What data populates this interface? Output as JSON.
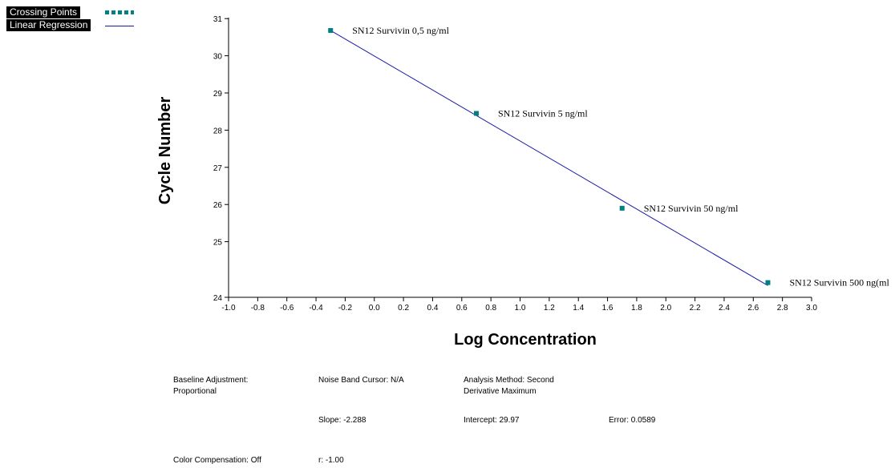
{
  "legend": {
    "items": [
      {
        "label": "Crossing Points",
        "style": "dots",
        "color": "#008080"
      },
      {
        "label": "Linear Regression",
        "style": "line",
        "color": "#1a1aa8"
      }
    ]
  },
  "chart_data": {
    "type": "scatter",
    "xlabel": "Log Concentration",
    "ylabel": "Cycle Number",
    "xlim": [
      -1.0,
      3.0
    ],
    "ylim": [
      24,
      31
    ],
    "x_ticks": [
      "-1.0",
      "-0.8",
      "-0.6",
      "-0.4",
      "-0.2",
      "0.0",
      "0.2",
      "0.4",
      "0.6",
      "0.8",
      "1.0",
      "1.2",
      "1.4",
      "1.6",
      "1.8",
      "2.0",
      "2.2",
      "2.4",
      "2.6",
      "2.8",
      "3.0"
    ],
    "y_ticks": [
      "24",
      "25",
      "26",
      "27",
      "28",
      "29",
      "30",
      "31"
    ],
    "grid": false,
    "points": [
      {
        "x": -0.3,
        "y": 30.68,
        "label": "SN12 Survivin 0,5 ng/ml"
      },
      {
        "x": 0.7,
        "y": 28.45,
        "label": "SN12 Survivin 5 ng/ml"
      },
      {
        "x": 1.7,
        "y": 25.9,
        "label": "SN12 Survivin 50 ng/ml"
      },
      {
        "x": 2.7,
        "y": 23.9,
        "label": "SN12 Survivin 500 ng(ml"
      }
    ],
    "regression": {
      "x_start": -0.3,
      "y_start": 30.68,
      "x_end": 2.7,
      "y_end": 23.82
    },
    "point_color": "#008080",
    "line_color": "#1a1aa8"
  },
  "info": {
    "baseline": "Baseline Adjustment:\nProportional",
    "noise_band": "Noise Band Cursor: N/A",
    "analysis_method": "Analysis Method: Second\nDerivative Maximum",
    "slope": "Slope: -2.288",
    "intercept": "Intercept: 29.97",
    "error": "Error: 0.0589",
    "color_compensation": "Color Compensation: Off",
    "r": "r: -1.00"
  }
}
